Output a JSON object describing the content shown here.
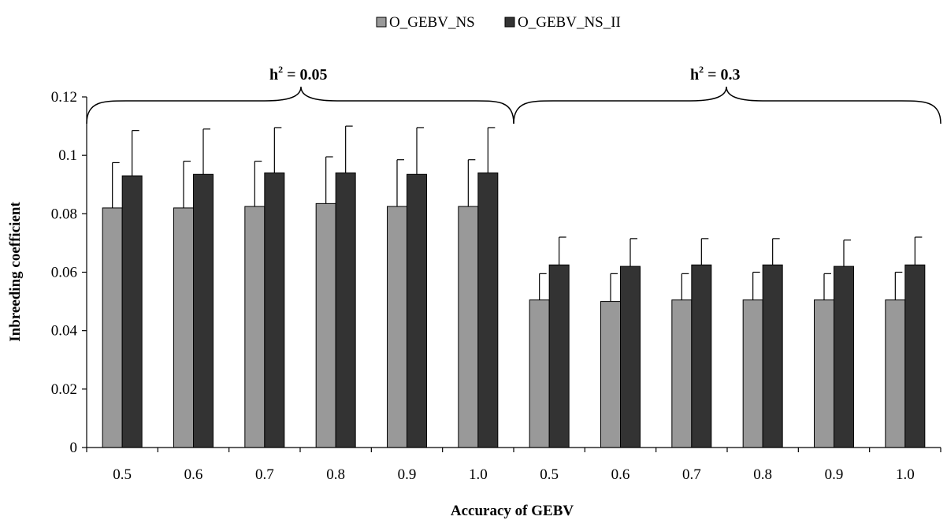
{
  "chart_data": {
    "type": "bar",
    "xlabel": "Accuracy of GEBV",
    "ylabel": "Inbreeding coefficient",
    "ylim": [
      0,
      0.12
    ],
    "yticks": [
      "0",
      "0.02",
      "0.04",
      "0.06",
      "0.08",
      "0.1",
      "0.12"
    ],
    "yticks_values": [
      0,
      0.02,
      0.04,
      0.06,
      0.08,
      0.1,
      0.12
    ],
    "categories": [
      "0.5",
      "0.6",
      "0.7",
      "0.8",
      "0.9",
      "1.0",
      "0.5",
      "0.6",
      "0.7",
      "0.8",
      "0.9",
      "1.0"
    ],
    "groups": [
      {
        "label_base": "h",
        "label_sup": "2",
        "label_rest": " = 0.05",
        "categories": [
          0,
          1,
          2,
          3,
          4,
          5
        ]
      },
      {
        "label_base": "h",
        "label_sup": "2",
        "label_rest": " = 0.3",
        "categories": [
          6,
          7,
          8,
          9,
          10,
          11
        ]
      }
    ],
    "legend_position": "top-center",
    "grid": false,
    "series": [
      {
        "name": "O_GEBV_NS",
        "color": "#999999",
        "values": [
          0.082,
          0.082,
          0.0825,
          0.0835,
          0.0825,
          0.0825,
          0.0505,
          0.05,
          0.0505,
          0.0505,
          0.0505,
          0.0505
        ],
        "errors": [
          0.0155,
          0.016,
          0.0155,
          0.016,
          0.016,
          0.016,
          0.009,
          0.0095,
          0.009,
          0.0095,
          0.009,
          0.0095
        ]
      },
      {
        "name": "O_GEBV_NS_II",
        "color": "#333333",
        "values": [
          0.093,
          0.0935,
          0.094,
          0.094,
          0.0935,
          0.094,
          0.0625,
          0.062,
          0.0625,
          0.0625,
          0.062,
          0.0625
        ],
        "errors": [
          0.0155,
          0.0155,
          0.0155,
          0.016,
          0.016,
          0.0155,
          0.0095,
          0.0095,
          0.009,
          0.009,
          0.009,
          0.0095
        ]
      }
    ]
  }
}
